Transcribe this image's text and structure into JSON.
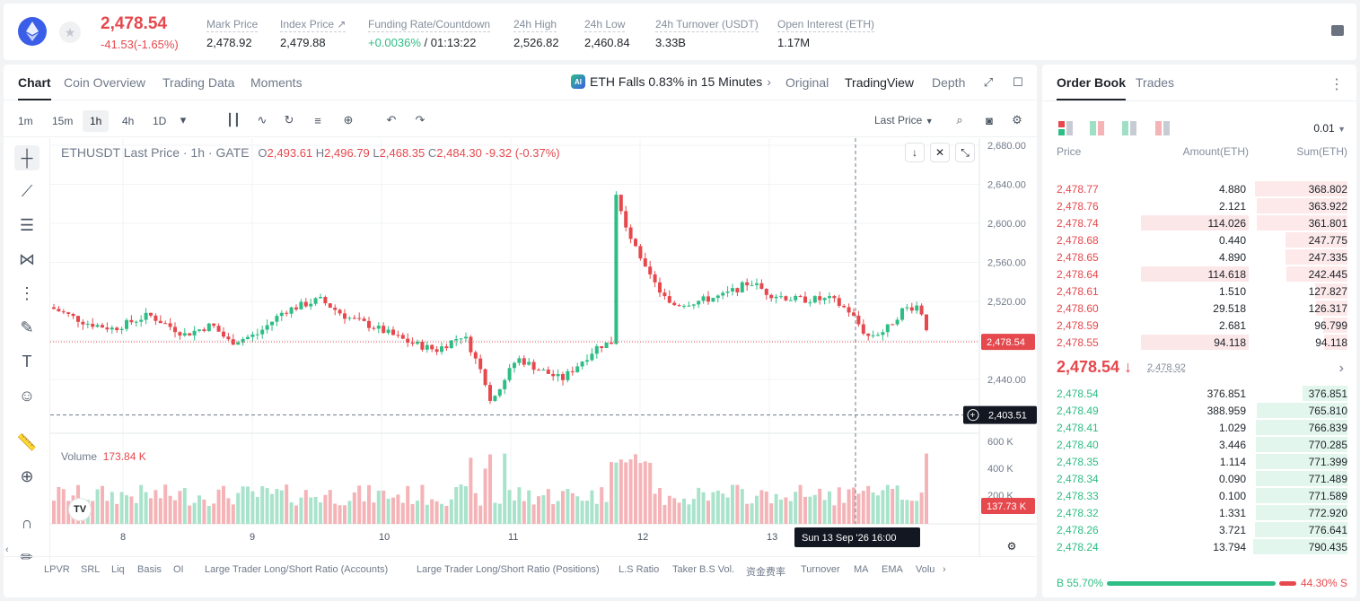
{
  "header": {
    "last_price": "2,478.54",
    "change": "-41.53(-1.65%)",
    "stats": [
      {
        "label": "Mark Price",
        "value": "2,478.92"
      },
      {
        "label": "Index Price ↗",
        "value": "2,479.88"
      },
      {
        "label": "Funding Rate/Countdown",
        "value_green": "+0.0036%",
        "value": " / 01:13:22"
      },
      {
        "label": "24h High",
        "value": "2,526.82"
      },
      {
        "label": "24h Low",
        "value": "2,460.84"
      },
      {
        "label": "24h Turnover (USDT)",
        "value": "3.33B"
      },
      {
        "label": "Open Interest (ETH)",
        "value": "1.17M"
      }
    ]
  },
  "chart_tabs": [
    "Chart",
    "Coin Overview",
    "Trading Data",
    "Moments"
  ],
  "news": "ETH Falls 0.83% in 15 Minutes",
  "views": [
    "Original",
    "TradingView",
    "Depth"
  ],
  "timeframes": [
    "1m",
    "15m",
    "1h",
    "4h",
    "1D"
  ],
  "price_type": "Last Price",
  "legend": {
    "symbol": "ETHUSDT Last Price · 1h · GATE",
    "o_label": "O",
    "o": "2,493.61",
    "h_label": "H",
    "h": "2,496.79",
    "l_label": "L",
    "l": "2,468.35",
    "c_label": "C",
    "c": "2,484.30",
    "chg": "-9.32 (-0.37%)"
  },
  "volume": {
    "label": "Volume",
    "value": "173.84 K",
    "current_tag": "137.73 K"
  },
  "crosshair": {
    "price_tag": "2,403.51",
    "time_tag": "Sun 13 Sep '26   16:00"
  },
  "current_price_tag": "2,478.54",
  "indicators": [
    "LPVR",
    "SRL",
    "Liq",
    "Basis",
    "OI",
    "Large Trader Long/Short Ratio (Accounts)",
    "Large Trader Long/Short Ratio (Positions)",
    "L.S Ratio",
    "Taker B.S Vol.",
    "资金费率",
    "Turnover",
    "MA",
    "EMA",
    "Volu"
  ],
  "chart_data": {
    "type": "candlestick",
    "y_ticks": [
      "2,680.00",
      "2,640.00",
      "2,600.00",
      "2,560.00",
      "2,520.00",
      "2,480.00",
      "2,440.00"
    ],
    "volume_ticks": [
      "600 K",
      "400 K",
      "200 K"
    ],
    "x_ticks": [
      "8",
      "9",
      "10",
      "11",
      "12",
      "13"
    ],
    "ylim": [
      2400,
      2690
    ]
  },
  "orderbook": {
    "tabs": [
      "Order Book",
      "Trades"
    ],
    "precision": "0.01",
    "headers": [
      "Price",
      "Amount(ETH)",
      "Sum(ETH)"
    ],
    "asks": [
      {
        "price": "2,478.77",
        "amount": "4.880",
        "sum": "368.802"
      },
      {
        "price": "2,478.76",
        "amount": "2.121",
        "sum": "363.922"
      },
      {
        "price": "2,478.74",
        "amount": "114.026",
        "sum": "361.801"
      },
      {
        "price": "2,478.68",
        "amount": "0.440",
        "sum": "247.775"
      },
      {
        "price": "2,478.65",
        "amount": "4.890",
        "sum": "247.335"
      },
      {
        "price": "2,478.64",
        "amount": "114.618",
        "sum": "242.445"
      },
      {
        "price": "2,478.61",
        "amount": "1.510",
        "sum": "127.827"
      },
      {
        "price": "2,478.60",
        "amount": "29.518",
        "sum": "126.317"
      },
      {
        "price": "2,478.59",
        "amount": "2.681",
        "sum": "96.799"
      },
      {
        "price": "2,478.55",
        "amount": "94.118",
        "sum": "94.118"
      }
    ],
    "mid_price": "2,478.54 ↓",
    "mark_price": "2,478.92",
    "bids": [
      {
        "price": "2,478.54",
        "amount": "376.851",
        "sum": "376.851"
      },
      {
        "price": "2,478.49",
        "amount": "388.959",
        "sum": "765.810"
      },
      {
        "price": "2,478.41",
        "amount": "1.029",
        "sum": "766.839"
      },
      {
        "price": "2,478.40",
        "amount": "3.446",
        "sum": "770.285"
      },
      {
        "price": "2,478.35",
        "amount": "1.114",
        "sum": "771.399"
      },
      {
        "price": "2,478.34",
        "amount": "0.090",
        "sum": "771.489"
      },
      {
        "price": "2,478.33",
        "amount": "0.100",
        "sum": "771.589"
      },
      {
        "price": "2,478.32",
        "amount": "1.331",
        "sum": "772.920"
      },
      {
        "price": "2,478.26",
        "amount": "3.721",
        "sum": "776.641"
      },
      {
        "price": "2,478.24",
        "amount": "13.794",
        "sum": "790.435"
      }
    ],
    "buy_ratio": "B 55.70%",
    "sell_ratio": "44.30% S"
  }
}
